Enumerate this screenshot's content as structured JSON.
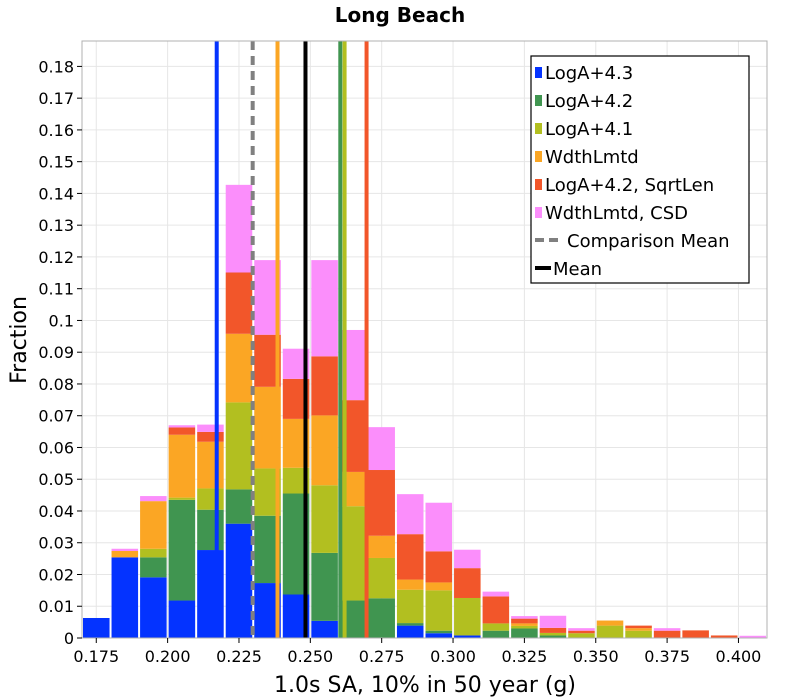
{
  "chart_data": {
    "type": "bar",
    "stacked": true,
    "title": "Long Beach",
    "xlabel": "1.0s SA, 10% in 50 year (g)",
    "ylabel": "Fraction",
    "xlim": [
      0.17,
      0.41
    ],
    "ylim": [
      0,
      0.188
    ],
    "bin_width": 0.01,
    "grid": true,
    "legend_position": "top-right",
    "x_ticks": [
      "0.175",
      "0.200",
      "0.225",
      "0.250",
      "0.275",
      "0.300",
      "0.325",
      "0.350",
      "0.375",
      "0.400"
    ],
    "y_ticks": [
      "0",
      "0.01",
      "0.02",
      "0.03",
      "0.04",
      "0.05",
      "0.06",
      "0.07",
      "0.08",
      "0.09",
      "0.1",
      "0.11",
      "0.12",
      "0.13",
      "0.14",
      "0.15",
      "0.16",
      "0.17",
      "0.18"
    ],
    "bins": [
      0.175,
      0.185,
      0.195,
      0.205,
      0.215,
      0.225,
      0.235,
      0.245,
      0.255,
      0.265,
      0.275,
      0.285,
      0.295,
      0.305,
      0.315,
      0.325,
      0.335,
      0.345,
      0.355,
      0.365,
      0.375,
      0.385,
      0.395,
      0.405
    ],
    "series": [
      {
        "name": "LogA+4.3",
        "color": "#0433ff",
        "values": [
          0.0063,
          0.0254,
          0.0191,
          0.0118,
          0.0277,
          0.036,
          0.0173,
          0.0137,
          0.0054,
          0,
          0,
          0.0039,
          0.0015,
          0.0008,
          0,
          0,
          0,
          0,
          0,
          0,
          0,
          0,
          0,
          0
        ]
      },
      {
        "name": "LogA+4.2",
        "color": "#409550",
        "values": [
          0,
          0,
          0.0063,
          0.0317,
          0.0127,
          0.0108,
          0.0212,
          0.0318,
          0.0214,
          0.0118,
          0.0125,
          0.0008,
          0.0008,
          0,
          0.0023,
          0.003,
          0.0008,
          0,
          0,
          0,
          0,
          0,
          0,
          0
        ]
      },
      {
        "name": "LogA+4.1",
        "color": "#b2bf20",
        "values": [
          0,
          0,
          0.0027,
          0.0007,
          0.0067,
          0.0274,
          0.0149,
          0.0081,
          0.0213,
          0.0297,
          0.0127,
          0.0105,
          0.0127,
          0.0118,
          0.0023,
          0.0008,
          0.0008,
          0.0015,
          0.0039,
          0.0023,
          0,
          0,
          0,
          0
        ]
      },
      {
        "name": "WdthLmtd",
        "color": "#fba624",
        "values": [
          0,
          0.002,
          0.015,
          0.0198,
          0.0147,
          0.0216,
          0.0257,
          0.0154,
          0.022,
          0.0108,
          0.007,
          0.0032,
          0.0025,
          0,
          0,
          0.0008,
          0,
          0,
          0.0016,
          0.0008,
          0,
          0,
          0,
          0
        ]
      },
      {
        "name": "LogA+4.2, SqrtLen",
        "color": "#f2562a",
        "values": [
          0,
          0,
          0,
          0.0023,
          0.0031,
          0.0193,
          0.0164,
          0.0126,
          0.0186,
          0.0226,
          0.0207,
          0.0143,
          0.0098,
          0.0094,
          0.0085,
          0.0015,
          0.0016,
          0.0008,
          0,
          0.0008,
          0.0023,
          0.0024,
          0.0008,
          0
        ]
      },
      {
        "name": "WdthLmtd, CSD",
        "color": "#fb8efb",
        "values": [
          0,
          0.0007,
          0.0016,
          0.0007,
          0.0023,
          0.0276,
          0.0235,
          0.0095,
          0.0303,
          0.0221,
          0.0135,
          0.0126,
          0.0153,
          0.0058,
          0.0015,
          0.0008,
          0.0038,
          0.0008,
          0,
          0,
          0.0008,
          0,
          0,
          0.0007
        ]
      }
    ],
    "vertical_lines": [
      {
        "name": "LogA+4.3 mean",
        "x": 0.2172,
        "color": "#0433ff",
        "dashed": false
      },
      {
        "name": "Comparison Mean",
        "x": 0.2298,
        "color": "#808080",
        "dashed": true
      },
      {
        "name": "WdthLmtd mean",
        "x": 0.2385,
        "color": "#fba624",
        "dashed": false
      },
      {
        "name": "Mean",
        "x": 0.2483,
        "color": "#000000",
        "dashed": false
      },
      {
        "name": "LogA+4.2 mean",
        "x": 0.2605,
        "color": "#409550",
        "dashed": false
      },
      {
        "name": "LogA+4.1 mean",
        "x": 0.262,
        "color": "#b2bf20",
        "dashed": false
      },
      {
        "name": "LogA+4.2, SqrtLen mean",
        "x": 0.2697,
        "color": "#f2562a",
        "dashed": false
      }
    ],
    "legend": [
      {
        "label": "LogA+4.3",
        "color": "#0433ff",
        "kind": "square"
      },
      {
        "label": "LogA+4.2",
        "color": "#409550",
        "kind": "square"
      },
      {
        "label": "LogA+4.1",
        "color": "#b2bf20",
        "kind": "square"
      },
      {
        "label": "WdthLmtd",
        "color": "#fba624",
        "kind": "square"
      },
      {
        "label": "LogA+4.2, SqrtLen",
        "color": "#f2562a",
        "kind": "square"
      },
      {
        "label": "WdthLmtd, CSD",
        "color": "#fb8efb",
        "kind": "square"
      },
      {
        "label": "Comparison Mean",
        "color": "#808080",
        "kind": "dash"
      },
      {
        "label": "Mean",
        "color": "#000000",
        "kind": "line"
      }
    ]
  }
}
